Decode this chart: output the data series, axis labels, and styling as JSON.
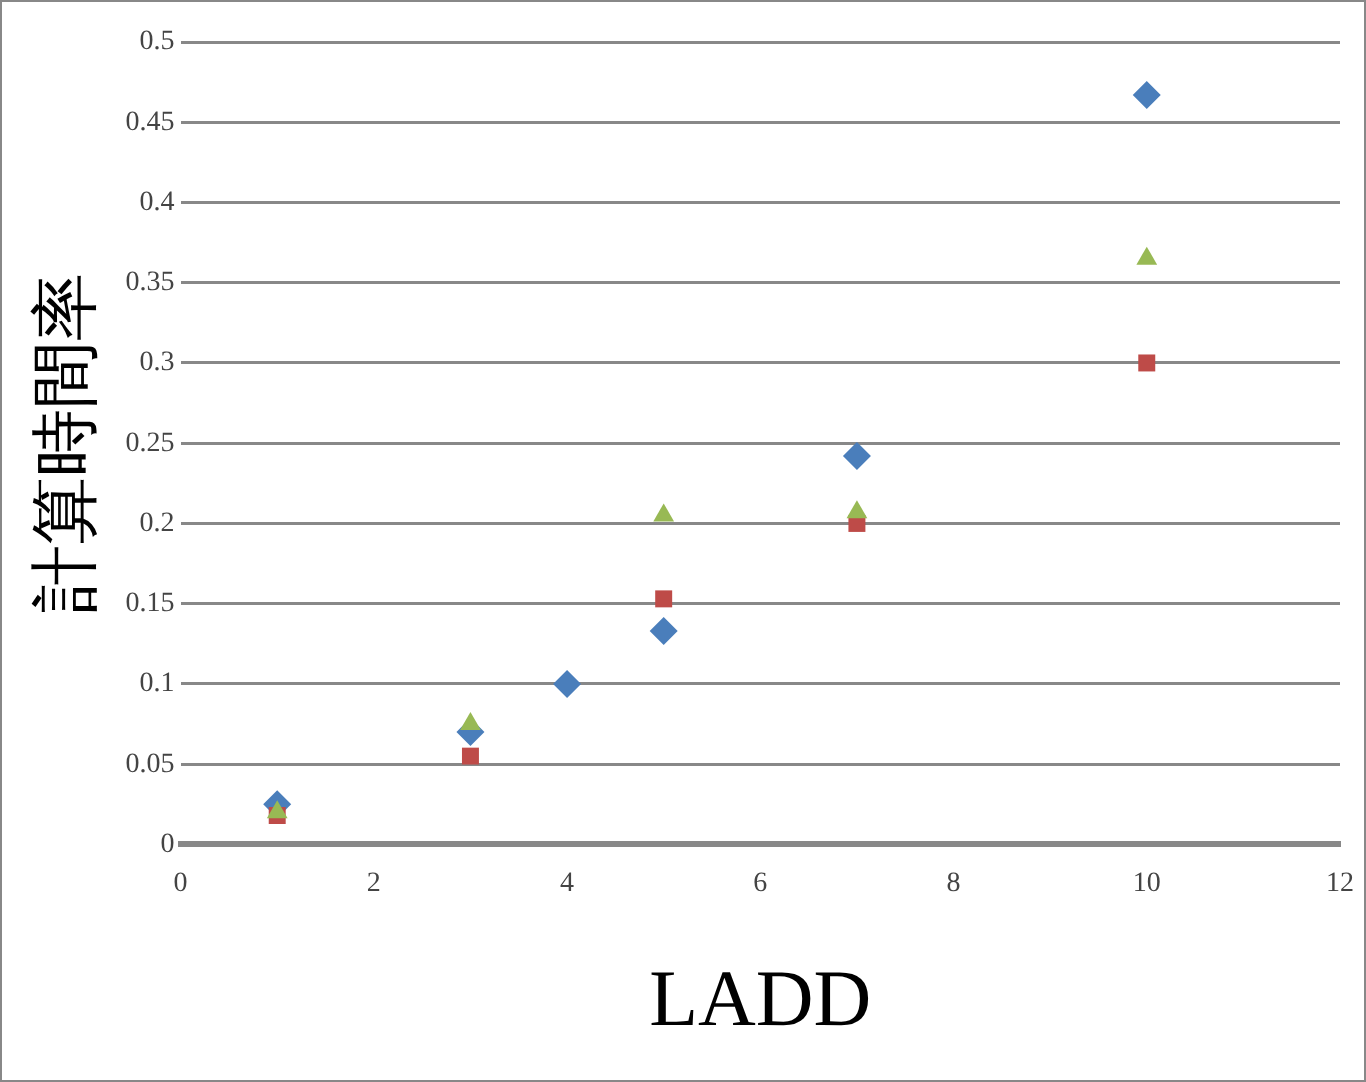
{
  "chart_data": {
    "type": "scatter",
    "xlabel": "LADD",
    "ylabel": "計算時間率",
    "grid": "y",
    "legend": false,
    "xlim": [
      0,
      12
    ],
    "xticks": [
      0,
      2,
      4,
      6,
      8,
      10,
      12
    ],
    "ylim": [
      0,
      0.5
    ],
    "yticks": [
      0,
      0.05,
      0.1,
      0.15,
      0.2,
      0.25,
      0.3,
      0.35,
      0.4,
      0.45,
      0.5
    ],
    "series": [
      {
        "color": "#4a7ebb",
        "marker": "diamond",
        "x": [
          1,
          3,
          4,
          5,
          7,
          10
        ],
        "values": [
          0.025,
          0.07,
          0.1,
          0.133,
          0.242,
          0.467
        ]
      },
      {
        "color": "#be4b48",
        "marker": "square",
        "x": [
          1,
          3,
          5,
          7,
          10
        ],
        "values": [
          0.018,
          0.055,
          0.153,
          0.2,
          0.3
        ]
      },
      {
        "color": "#98b954",
        "marker": "triangle",
        "x": [
          1,
          3,
          5,
          7,
          10
        ],
        "values": [
          0.02,
          0.075,
          0.205,
          0.207,
          0.365
        ]
      }
    ]
  }
}
